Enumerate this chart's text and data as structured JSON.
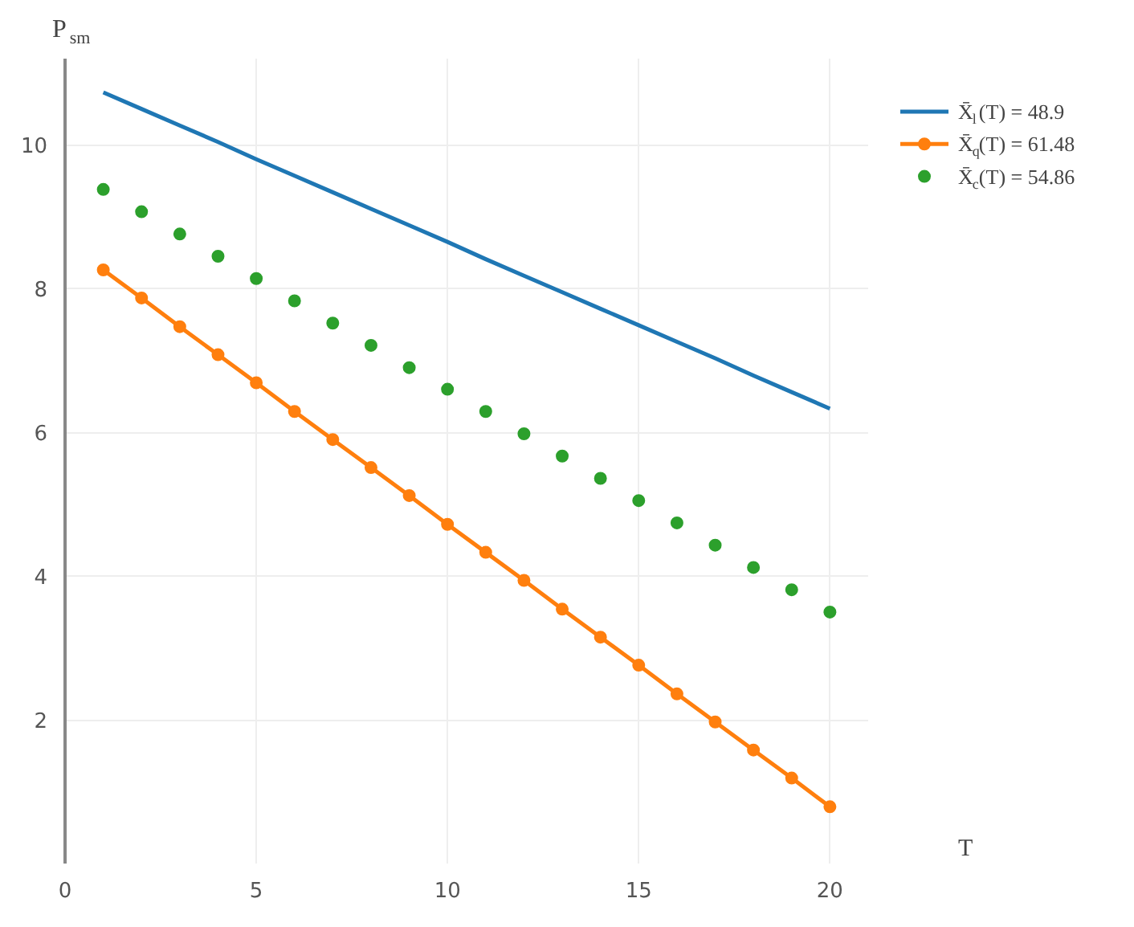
{
  "chart_data": {
    "type": "line",
    "xlabel": "T",
    "ylabel": "P$_{sm}$",
    "x": [
      1,
      2,
      3,
      4,
      5,
      6,
      7,
      8,
      9,
      10,
      11,
      12,
      13,
      14,
      15,
      16,
      17,
      18,
      19,
      20
    ],
    "xlim": [
      0,
      21
    ],
    "xticks": [
      0,
      5,
      10,
      15,
      20
    ],
    "ylim": [
      0,
      11.2
    ],
    "yticks": [
      2,
      4,
      6,
      8,
      10
    ],
    "grid": true,
    "legend": "top right",
    "series": [
      {
        "name": "X̄$_{l}$(T) = 48.9",
        "marker": "none",
        "color": "#1f77b4",
        "values": [
          10.73,
          10.5,
          10.27,
          10.04,
          9.8,
          9.57,
          9.34,
          9.11,
          8.88,
          8.65,
          8.41,
          8.18,
          7.95,
          7.72,
          7.49,
          7.26,
          7.03,
          6.79,
          6.56,
          6.33
        ]
      },
      {
        "name": "X̄$_{q}$(T) = 61.48",
        "marker": "circle",
        "color": "#ff7f0e",
        "values": [
          8.26,
          7.87,
          7.47,
          7.08,
          6.69,
          6.29,
          5.9,
          5.51,
          5.12,
          4.72,
          4.33,
          3.94,
          3.54,
          3.15,
          2.76,
          2.36,
          1.97,
          1.58,
          1.19,
          0.79
        ]
      },
      {
        "name": "X̄$_{c}$(T) = 54.86",
        "type": "scatter",
        "marker": "circle",
        "color": "#2ca02c",
        "values": [
          9.38,
          9.07,
          8.76,
          8.45,
          8.14,
          7.83,
          7.52,
          7.21,
          6.9,
          6.6,
          6.29,
          5.98,
          5.67,
          5.36,
          5.05,
          4.74,
          4.43,
          4.12,
          3.81,
          3.5
        ]
      }
    ]
  }
}
